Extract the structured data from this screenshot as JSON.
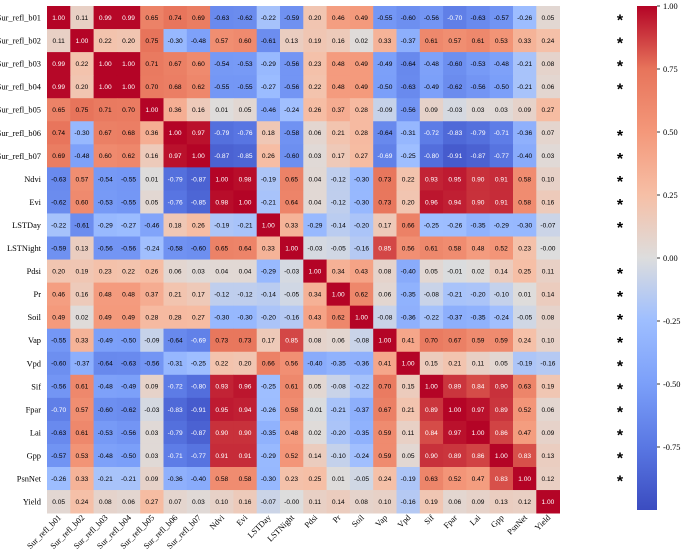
{
  "chart_data": {
    "type": "heatmap",
    "title": "",
    "labels": [
      "Sur_refl_b01",
      "Sur_refl_b02",
      "Sur_refl_b03",
      "Sur_refl_b04",
      "Sur_refl_b05",
      "Sur_refl_b06",
      "Sur_refl_b07",
      "Ndvi",
      "Evi",
      "LSTDay",
      "LSTNight",
      "Pdsi",
      "Pr",
      "Soil",
      "Vap",
      "Vpd",
      "Sif",
      "Fpar",
      "Lai",
      "Gpp",
      "PsnNet",
      "Yield"
    ],
    "matrix": [
      [
        "1.00",
        "0.11",
        "0.99",
        "0.99",
        "0.65",
        "0.74",
        "0.69",
        "-0.63",
        "-0.62",
        "-0.22",
        "-0.59",
        "0.20",
        "0.46",
        "0.49",
        "-0.55",
        "-0.60",
        "-0.56",
        "-0.70",
        "-0.63",
        "-0.57",
        "-0.26",
        "0.05"
      ],
      [
        "0.11",
        "1.00",
        "0.22",
        "0.20",
        "0.75",
        "-0.30",
        "-0.48",
        "0.57",
        "0.60",
        "-0.61",
        "0.13",
        "0.19",
        "0.16",
        "0.02",
        "0.33",
        "-0.37",
        "0.61",
        "0.57",
        "0.61",
        "0.53",
        "0.33",
        "0.24"
      ],
      [
        "0.99",
        "0.22",
        "1.00",
        "1.00",
        "0.71",
        "0.67",
        "0.60",
        "-0.54",
        "-0.53",
        "-0.29",
        "-0.56",
        "0.23",
        "0.48",
        "0.49",
        "-0.49",
        "-0.64",
        "-0.48",
        "-0.60",
        "-0.53",
        "-0.48",
        "-0.21",
        "0.08"
      ],
      [
        "0.99",
        "0.20",
        "1.00",
        "1.00",
        "0.70",
        "0.68",
        "0.62",
        "-0.55",
        "-0.55",
        "-0.27",
        "-0.56",
        "0.22",
        "0.48",
        "0.49",
        "-0.50",
        "-0.63",
        "-0.49",
        "-0.62",
        "-0.56",
        "-0.50",
        "-0.21",
        "0.06"
      ],
      [
        "0.65",
        "0.75",
        "0.71",
        "0.70",
        "1.00",
        "0.36",
        "0.16",
        "0.01",
        "0.05",
        "-0.46",
        "-0.24",
        "0.26",
        "0.37",
        "0.28",
        "-0.09",
        "-0.56",
        "0.09",
        "-0.03",
        "0.03",
        "0.03",
        "0.09",
        "0.27"
      ],
      [
        "0.74",
        "-0.30",
        "0.67",
        "0.68",
        "0.36",
        "1.00",
        "0.97",
        "-0.79",
        "-0.76",
        "0.18",
        "-0.58",
        "0.06",
        "0.21",
        "0.28",
        "-0.64",
        "-0.31",
        "-0.72",
        "-0.83",
        "-0.79",
        "-0.71",
        "-0.36",
        "0.07"
      ],
      [
        "0.69",
        "-0.48",
        "0.60",
        "0.62",
        "0.16",
        "0.97",
        "1.00",
        "-0.87",
        "-0.85",
        "0.26",
        "-0.60",
        "0.03",
        "0.17",
        "0.27",
        "-0.69",
        "-0.25",
        "-0.80",
        "-0.91",
        "-0.87",
        "-0.77",
        "-0.40",
        "0.03"
      ],
      [
        "-0.63",
        "0.57",
        "-0.54",
        "-0.55",
        "0.01",
        "-0.79",
        "-0.87",
        "1.00",
        "0.98",
        "-0.19",
        "0.65",
        "0.04",
        "-0.12",
        "-0.30",
        "0.73",
        "0.22",
        "0.93",
        "0.95",
        "0.90",
        "0.91",
        "0.58",
        "0.10"
      ],
      [
        "-0.62",
        "0.60",
        "-0.53",
        "-0.55",
        "0.05",
        "-0.76",
        "-0.85",
        "0.98",
        "1.00",
        "-0.21",
        "0.64",
        "0.04",
        "-0.12",
        "-0.30",
        "0.73",
        "0.20",
        "0.96",
        "0.94",
        "0.90",
        "0.91",
        "0.58",
        "0.16"
      ],
      [
        "-0.22",
        "-0.61",
        "-0.29",
        "-0.27",
        "-0.46",
        "0.18",
        "0.26",
        "-0.19",
        "-0.21",
        "1.00",
        "0.33",
        "-0.29",
        "-0.14",
        "-0.20",
        "0.17",
        "0.66",
        "-0.25",
        "-0.26",
        "-0.35",
        "-0.29",
        "-0.30",
        "-0.07"
      ],
      [
        "-0.59",
        "0.13",
        "-0.56",
        "-0.56",
        "-0.24",
        "-0.58",
        "-0.60",
        "0.65",
        "0.64",
        "0.33",
        "1.00",
        "-0.03",
        "-0.05",
        "-0.16",
        "0.85",
        "0.56",
        "0.61",
        "0.58",
        "0.48",
        "0.52",
        "0.23",
        "-0.00"
      ],
      [
        "0.20",
        "0.19",
        "0.23",
        "0.22",
        "0.26",
        "0.06",
        "0.03",
        "0.04",
        "0.04",
        "-0.29",
        "-0.03",
        "1.00",
        "0.34",
        "0.43",
        "0.08",
        "-0.40",
        "0.05",
        "-0.01",
        "0.02",
        "0.14",
        "0.25",
        "0.11"
      ],
      [
        "0.46",
        "0.16",
        "0.48",
        "0.48",
        "0.37",
        "0.21",
        "0.17",
        "-0.12",
        "-0.12",
        "-0.14",
        "-0.05",
        "0.34",
        "1.00",
        "0.62",
        "0.06",
        "-0.35",
        "-0.08",
        "-0.21",
        "-0.20",
        "-0.10",
        "0.01",
        "0.14"
      ],
      [
        "0.49",
        "0.02",
        "0.49",
        "0.49",
        "0.28",
        "0.28",
        "0.27",
        "-0.30",
        "-0.30",
        "-0.20",
        "-0.16",
        "0.43",
        "0.62",
        "1.00",
        "-0.08",
        "-0.36",
        "-0.22",
        "-0.37",
        "-0.35",
        "-0.24",
        "-0.05",
        "0.08"
      ],
      [
        "-0.55",
        "0.33",
        "-0.49",
        "-0.50",
        "-0.09",
        "-0.64",
        "-0.69",
        "0.73",
        "0.73",
        "0.17",
        "0.85",
        "0.08",
        "0.06",
        "-0.08",
        "1.00",
        "0.41",
        "0.70",
        "0.67",
        "0.59",
        "0.59",
        "0.24",
        "0.10"
      ],
      [
        "-0.60",
        "-0.37",
        "-0.64",
        "-0.63",
        "-0.56",
        "-0.31",
        "-0.25",
        "0.22",
        "0.20",
        "0.66",
        "0.56",
        "-0.40",
        "-0.35",
        "-0.36",
        "0.41",
        "1.00",
        "0.15",
        "0.21",
        "0.11",
        "0.05",
        "-0.19",
        "-0.16"
      ],
      [
        "-0.56",
        "0.61",
        "-0.48",
        "-0.49",
        "0.09",
        "-0.72",
        "-0.80",
        "0.93",
        "0.96",
        "-0.25",
        "0.61",
        "0.05",
        "-0.08",
        "-0.22",
        "0.70",
        "0.15",
        "1.00",
        "0.89",
        "0.84",
        "0.90",
        "0.63",
        "0.19"
      ],
      [
        "-0.70",
        "0.57",
        "-0.60",
        "-0.62",
        "-0.03",
        "-0.83",
        "-0.91",
        "0.95",
        "0.94",
        "-0.26",
        "0.58",
        "-0.01",
        "-0.21",
        "-0.37",
        "0.67",
        "0.21",
        "0.89",
        "1.00",
        "0.97",
        "0.89",
        "0.52",
        "0.06"
      ],
      [
        "-0.63",
        "0.61",
        "-0.53",
        "-0.56",
        "0.03",
        "-0.79",
        "-0.87",
        "0.90",
        "0.90",
        "-0.35",
        "0.48",
        "0.02",
        "-0.20",
        "-0.35",
        "0.59",
        "0.11",
        "0.84",
        "0.97",
        "1.00",
        "0.86",
        "0.47",
        "0.09"
      ],
      [
        "-0.57",
        "0.53",
        "-0.48",
        "-0.50",
        "0.03",
        "-0.71",
        "-0.77",
        "0.91",
        "0.91",
        "-0.29",
        "0.52",
        "0.14",
        "-0.10",
        "-0.24",
        "0.59",
        "0.05",
        "0.90",
        "0.89",
        "0.86",
        "1.00",
        "0.83",
        "0.13"
      ],
      [
        "-0.26",
        "0.33",
        "-0.21",
        "-0.21",
        "0.09",
        "-0.36",
        "-0.40",
        "0.58",
        "0.58",
        "-0.30",
        "0.23",
        "0.25",
        "0.01",
        "-0.05",
        "0.24",
        "-0.19",
        "0.63",
        "0.52",
        "0.47",
        "0.83",
        "1.00",
        "0.12"
      ],
      [
        "0.05",
        "0.24",
        "0.08",
        "0.06",
        "0.27",
        "0.07",
        "0.03",
        "0.10",
        "0.16",
        "-0.07",
        "-0.00",
        "0.11",
        "0.14",
        "0.08",
        "0.10",
        "-0.16",
        "0.19",
        "0.06",
        "0.09",
        "0.13",
        "0.12",
        "1.00"
      ]
    ],
    "significance_marker": "*",
    "significant_rows": [
      "Sur_refl_b01",
      "Sur_refl_b02",
      "Sur_refl_b03",
      "Sur_refl_b04",
      "Sur_refl_b06",
      "Sur_refl_b07",
      "Ndvi",
      "Evi",
      "LSTDay",
      "Pdsi",
      "Pr",
      "Soil",
      "Vap",
      "Vpd",
      "Sif",
      "Fpar",
      "Lai",
      "Gpp",
      "PsnNet"
    ],
    "colorbar": {
      "range": [
        -1,
        1
      ],
      "ticks": [
        "1.00",
        "0.75",
        "0.50",
        "0.25",
        "0.00",
        "-0.25",
        "-0.50",
        "-0.75"
      ],
      "colormap": "coolwarm",
      "colors": {
        "low": "#3b4cc0",
        "mid": "#dddddd",
        "high": "#b40426"
      }
    }
  }
}
